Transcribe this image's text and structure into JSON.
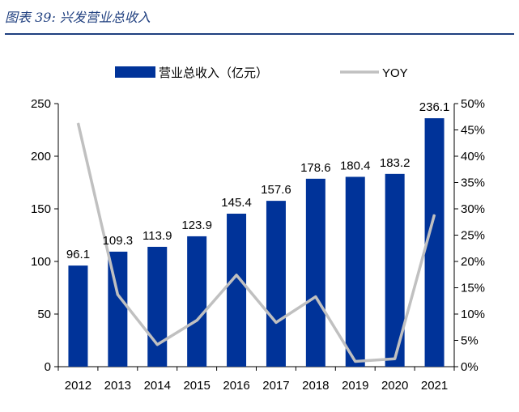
{
  "figure_title": "图表 39:  兴发营业总收入",
  "chart_data": {
    "type": "bar",
    "categories": [
      "2012",
      "2013",
      "2014",
      "2015",
      "2016",
      "2017",
      "2018",
      "2019",
      "2020",
      "2021"
    ],
    "series": [
      {
        "name": "营业总收入（亿元）",
        "type": "bar",
        "axis": "left",
        "color": "#003399",
        "values": [
          96.1,
          109.3,
          113.9,
          123.9,
          145.4,
          157.6,
          178.6,
          180.4,
          183.2,
          236.1
        ]
      },
      {
        "name": "YOY",
        "type": "line",
        "axis": "right",
        "color": "#c0c0c0",
        "values": [
          46.3,
          13.7,
          4.2,
          8.8,
          17.4,
          8.4,
          13.3,
          1.0,
          1.5,
          28.9
        ]
      }
    ],
    "data_labels": [
      "96.1",
      "109.3",
      "113.9",
      "123.9",
      "145.4",
      "157.6",
      "178.6",
      "180.4",
      "183.2",
      "236.1"
    ],
    "y_left": {
      "min": 0,
      "max": 250,
      "ticks": [
        "0",
        "50",
        "100",
        "150",
        "200",
        "250"
      ]
    },
    "y_right": {
      "min": 0,
      "max": 50,
      "ticks": [
        "0%",
        "5%",
        "10%",
        "15%",
        "20%",
        "25%",
        "30%",
        "35%",
        "40%",
        "45%",
        "50%"
      ]
    },
    "legend_position": "top",
    "grid": false
  }
}
